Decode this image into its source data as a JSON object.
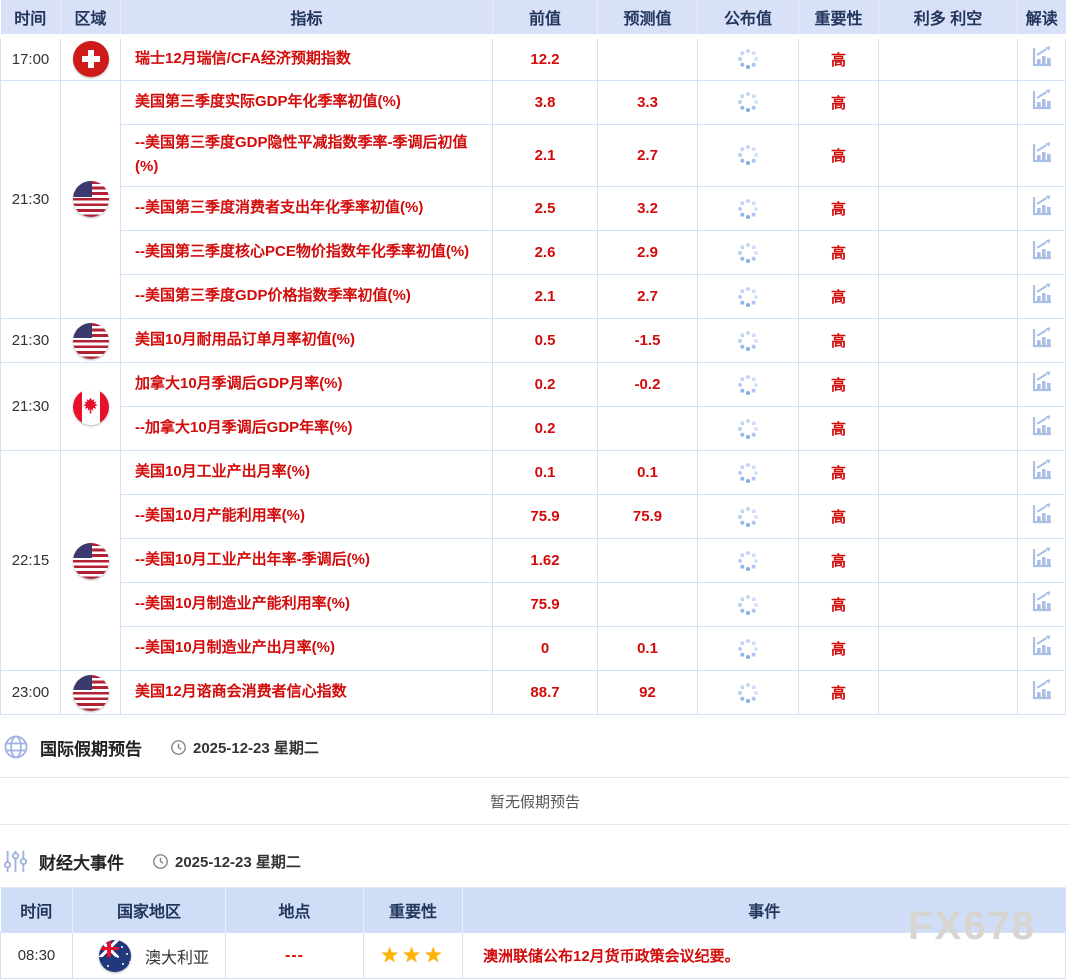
{
  "calendar": {
    "headers": [
      "时间",
      "区域",
      "指标",
      "前值",
      "预测值",
      "公布值",
      "重要性",
      "利多 利空",
      "解读"
    ],
    "groups": [
      {
        "time": "17:00",
        "country": "switzerland",
        "rows": [
          {
            "name": "瑞士12月瑞信/CFA经济预期指数",
            "previous": "12.2",
            "forecast": "",
            "importance": "高"
          }
        ]
      },
      {
        "time": "21:30",
        "country": "usa",
        "rows": [
          {
            "name": "美国第三季度实际GDP年化季率初值(%)",
            "previous": "3.8",
            "forecast": "3.3",
            "importance": "高"
          },
          {
            "name": "--美国第三季度GDP隐性平减指数季率-季调后初值(%)",
            "previous": "2.1",
            "forecast": "2.7",
            "importance": "高"
          },
          {
            "name": "--美国第三季度消费者支出年化季率初值(%)",
            "previous": "2.5",
            "forecast": "3.2",
            "importance": "高"
          },
          {
            "name": "--美国第三季度核心PCE物价指数年化季率初值(%)",
            "previous": "2.6",
            "forecast": "2.9",
            "importance": "高"
          },
          {
            "name": "--美国第三季度GDP价格指数季率初值(%)",
            "previous": "2.1",
            "forecast": "2.7",
            "importance": "高"
          }
        ]
      },
      {
        "time": "21:30",
        "country": "usa",
        "rows": [
          {
            "name": "美国10月耐用品订单月率初值(%)",
            "previous": "0.5",
            "forecast": "-1.5",
            "importance": "高"
          }
        ]
      },
      {
        "time": "21:30",
        "country": "canada",
        "rows": [
          {
            "name": "加拿大10月季调后GDP月率(%)",
            "previous": "0.2",
            "forecast": "-0.2",
            "importance": "高"
          },
          {
            "name": "--加拿大10月季调后GDP年率(%)",
            "previous": "0.2",
            "forecast": "",
            "importance": "高"
          }
        ]
      },
      {
        "time": "22:15",
        "country": "usa",
        "rows": [
          {
            "name": "美国10月工业产出月率(%)",
            "previous": "0.1",
            "forecast": "0.1",
            "importance": "高"
          },
          {
            "name": "--美国10月产能利用率(%)",
            "previous": "75.9",
            "forecast": "75.9",
            "importance": "高"
          },
          {
            "name": "--美国10月工业产出年率-季调后(%)",
            "previous": "1.62",
            "forecast": "",
            "importance": "高"
          },
          {
            "name": "--美国10月制造业产能利用率(%)",
            "previous": "75.9",
            "forecast": "",
            "importance": "高"
          },
          {
            "name": "--美国10月制造业产出月率(%)",
            "previous": "0",
            "forecast": "0.1",
            "importance": "高"
          }
        ]
      },
      {
        "time": "23:00",
        "country": "usa",
        "rows": [
          {
            "name": "美国12月谘商会消费者信心指数",
            "previous": "88.7",
            "forecast": "92",
            "importance": "高"
          }
        ]
      }
    ]
  },
  "holiday_section": {
    "title": "国际假期预告",
    "date": "2025-12-23 星期二",
    "empty_text": "暂无假期预告"
  },
  "events_section": {
    "title": "财经大事件",
    "date": "2025-12-23 星期二",
    "headers": [
      "时间",
      "国家地区",
      "地点",
      "重要性",
      "事件"
    ],
    "rows": [
      {
        "time": "08:30",
        "country": "澳大利亚",
        "country_flag": "australia",
        "location": "---",
        "importance_stars": 3,
        "event": "澳洲联储公布12月货币政策会议纪要。"
      }
    ]
  },
  "watermark": "FX678",
  "colors": {
    "accent_red": "#d20b0b",
    "header_bg": "#d8e1f7",
    "events_header_bg": "#cfdef6",
    "border_blue": "#d2e3f8",
    "icon_blue": "#a9bfe6",
    "star_gold": "#ffb400"
  }
}
